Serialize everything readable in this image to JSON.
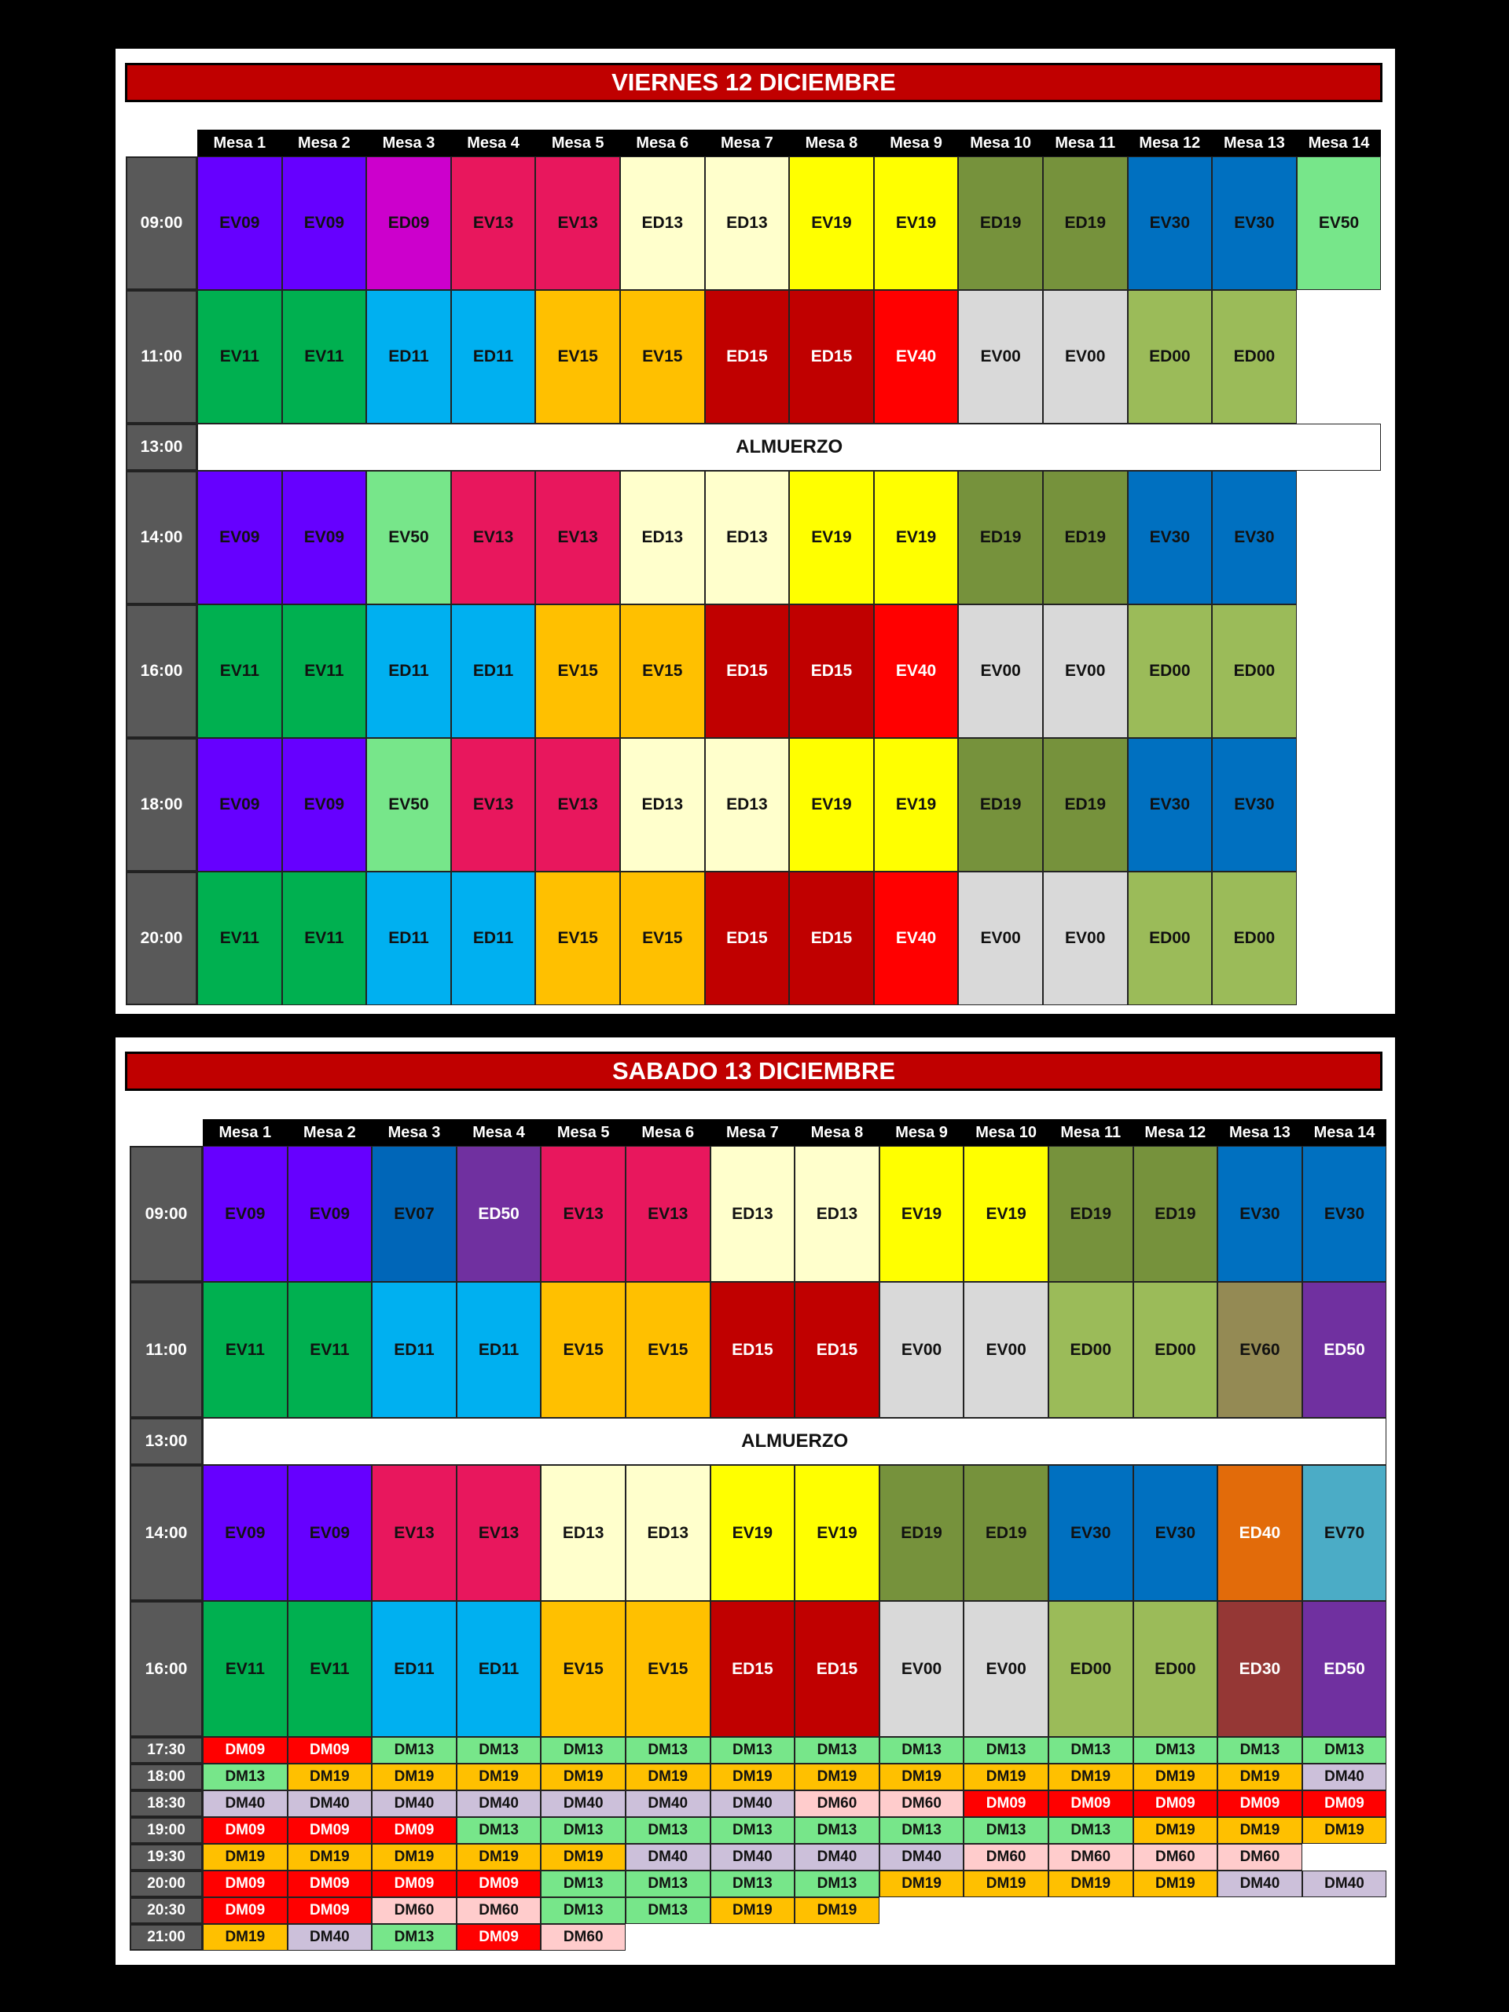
{
  "mesas": [
    "Mesa 1",
    "Mesa 2",
    "Mesa 3",
    "Mesa 4",
    "Mesa 5",
    "Mesa 6",
    "Mesa 7",
    "Mesa 8",
    "Mesa 9",
    "Mesa 10",
    "Mesa 11",
    "Mesa 12",
    "Mesa 13",
    "Mesa 14"
  ],
  "lunch_label": "ALMUERZO",
  "colors": {
    "EV09": "#6600FF",
    "ED09": "#CC00CC",
    "EV13": "#E8175D",
    "ED13": "#FFFFCC",
    "EV19": "#FFFF00",
    "ED19": "#76923C",
    "EV30": "#0070C0",
    "EV07": "#0066B8",
    "EV50": "#77E68A",
    "EV11": "#00B050",
    "ED11": "#00B0F0",
    "EV15": "#FFC000",
    "ED15": "#C00000",
    "EV40": "#FF0000",
    "EV00": "#D9D9D9",
    "ED00": "#9BBB59",
    "ED50": "#7030A0",
    "EV60": "#948A54",
    "ED40": "#E26B0A",
    "EV70": "#4BACC6",
    "ED30": "#953735",
    "DM09": "#FF0000",
    "DM13": "#77E68A",
    "DM19": "#FFC000",
    "DM40": "#CCC0DA",
    "DM60": "#FFCCCC"
  },
  "white_text_codes": [
    "ED15",
    "EV40",
    "ED50",
    "ED40",
    "ED30",
    "DM09"
  ],
  "viernes": {
    "title": "VIERNES 12 DICIEMBRE",
    "rows": [
      {
        "time": "09:00",
        "type": "big",
        "cells": [
          "EV09",
          "EV09",
          "ED09",
          "EV13",
          "EV13",
          "ED13",
          "ED13",
          "EV19",
          "EV19",
          "ED19",
          "ED19",
          "EV30",
          "EV30",
          "EV50"
        ]
      },
      {
        "time": "11:00",
        "type": "big",
        "cells": [
          "EV11",
          "EV11",
          "ED11",
          "ED11",
          "EV15",
          "EV15",
          "ED15",
          "ED15",
          "EV40",
          "EV00",
          "EV00",
          "ED00",
          "ED00",
          ""
        ]
      },
      {
        "time": "13:00",
        "type": "lunch"
      },
      {
        "time": "14:00",
        "type": "big",
        "cells": [
          "EV09",
          "EV09",
          "EV50",
          "EV13",
          "EV13",
          "ED13",
          "ED13",
          "EV19",
          "EV19",
          "ED19",
          "ED19",
          "EV30",
          "EV30",
          ""
        ]
      },
      {
        "time": "16:00",
        "type": "big",
        "cells": [
          "EV11",
          "EV11",
          "ED11",
          "ED11",
          "EV15",
          "EV15",
          "ED15",
          "ED15",
          "EV40",
          "EV00",
          "EV00",
          "ED00",
          "ED00",
          ""
        ]
      },
      {
        "time": "18:00",
        "type": "big",
        "cells": [
          "EV09",
          "EV09",
          "EV50",
          "EV13",
          "EV13",
          "ED13",
          "ED13",
          "EV19",
          "EV19",
          "ED19",
          "ED19",
          "EV30",
          "EV30",
          ""
        ]
      },
      {
        "time": "20:00",
        "type": "big",
        "cells": [
          "EV11",
          "EV11",
          "ED11",
          "ED11",
          "EV15",
          "EV15",
          "ED15",
          "ED15",
          "EV40",
          "EV00",
          "EV00",
          "ED00",
          "ED00",
          ""
        ]
      }
    ]
  },
  "sabado": {
    "title": "SABADO 13 DICIEMBRE",
    "rows": [
      {
        "time": "09:00",
        "type": "big",
        "cells": [
          "EV09",
          "EV09",
          "EV07",
          "ED50",
          "EV13",
          "EV13",
          "ED13",
          "ED13",
          "EV19",
          "EV19",
          "ED19",
          "ED19",
          "EV30",
          "EV30"
        ]
      },
      {
        "time": "11:00",
        "type": "big",
        "cells": [
          "EV11",
          "EV11",
          "ED11",
          "ED11",
          "EV15",
          "EV15",
          "ED15",
          "ED15",
          "EV00",
          "EV00",
          "ED00",
          "ED00",
          "EV60",
          "ED50"
        ]
      },
      {
        "time": "13:00",
        "type": "lunch"
      },
      {
        "time": "14:00",
        "type": "big",
        "cells": [
          "EV09",
          "EV09",
          "EV13",
          "EV13",
          "ED13",
          "ED13",
          "EV19",
          "EV19",
          "ED19",
          "ED19",
          "EV30",
          "EV30",
          "ED40",
          "EV70"
        ]
      },
      {
        "time": "16:00",
        "type": "big",
        "cells": [
          "EV11",
          "EV11",
          "ED11",
          "ED11",
          "EV15",
          "EV15",
          "ED15",
          "ED15",
          "EV00",
          "EV00",
          "ED00",
          "ED00",
          "ED30",
          "ED50"
        ]
      },
      {
        "time": "17:30",
        "type": "small",
        "cells": [
          "DM09",
          "DM09",
          "DM13",
          "DM13",
          "DM13",
          "DM13",
          "DM13",
          "DM13",
          "DM13",
          "DM13",
          "DM13",
          "DM13",
          "DM13",
          "DM13"
        ]
      },
      {
        "time": "18:00",
        "type": "small",
        "cells": [
          "DM13",
          "DM19",
          "DM19",
          "DM19",
          "DM19",
          "DM19",
          "DM19",
          "DM19",
          "DM19",
          "DM19",
          "DM19",
          "DM19",
          "DM19",
          "DM40"
        ]
      },
      {
        "time": "18:30",
        "type": "small",
        "cells": [
          "DM40",
          "DM40",
          "DM40",
          "DM40",
          "DM40",
          "DM40",
          "DM40",
          "DM60",
          "DM60",
          "DM09",
          "DM09",
          "DM09",
          "DM09",
          "DM09"
        ]
      },
      {
        "time": "19:00",
        "type": "small",
        "cells": [
          "DM09",
          "DM09",
          "DM09",
          "DM13",
          "DM13",
          "DM13",
          "DM13",
          "DM13",
          "DM13",
          "DM13",
          "DM13",
          "DM19",
          "DM19",
          "DM19"
        ]
      },
      {
        "time": "19:30",
        "type": "small",
        "cells": [
          "DM19",
          "DM19",
          "DM19",
          "DM19",
          "DM19",
          "DM40",
          "DM40",
          "DM40",
          "DM40",
          "DM60",
          "DM60",
          "DM60",
          "DM60",
          ""
        ]
      },
      {
        "time": "20:00",
        "type": "small",
        "cells": [
          "DM09",
          "DM09",
          "DM09",
          "DM09",
          "DM13",
          "DM13",
          "DM13",
          "DM13",
          "DM19",
          "DM19",
          "DM19",
          "DM19",
          "DM40",
          "DM40"
        ]
      },
      {
        "time": "20:30",
        "type": "small",
        "cells": [
          "DM09",
          "DM09",
          "DM60",
          "DM60",
          "DM13",
          "DM13",
          "DM19",
          "DM19",
          "",
          "",
          "",
          "",
          "",
          ""
        ]
      },
      {
        "time": "21:00",
        "type": "small",
        "cells": [
          "DM19",
          "DM40",
          "DM13",
          "DM09",
          "DM60",
          "",
          "",
          "",
          "",
          "",
          "",
          "",
          "",
          ""
        ]
      }
    ]
  }
}
